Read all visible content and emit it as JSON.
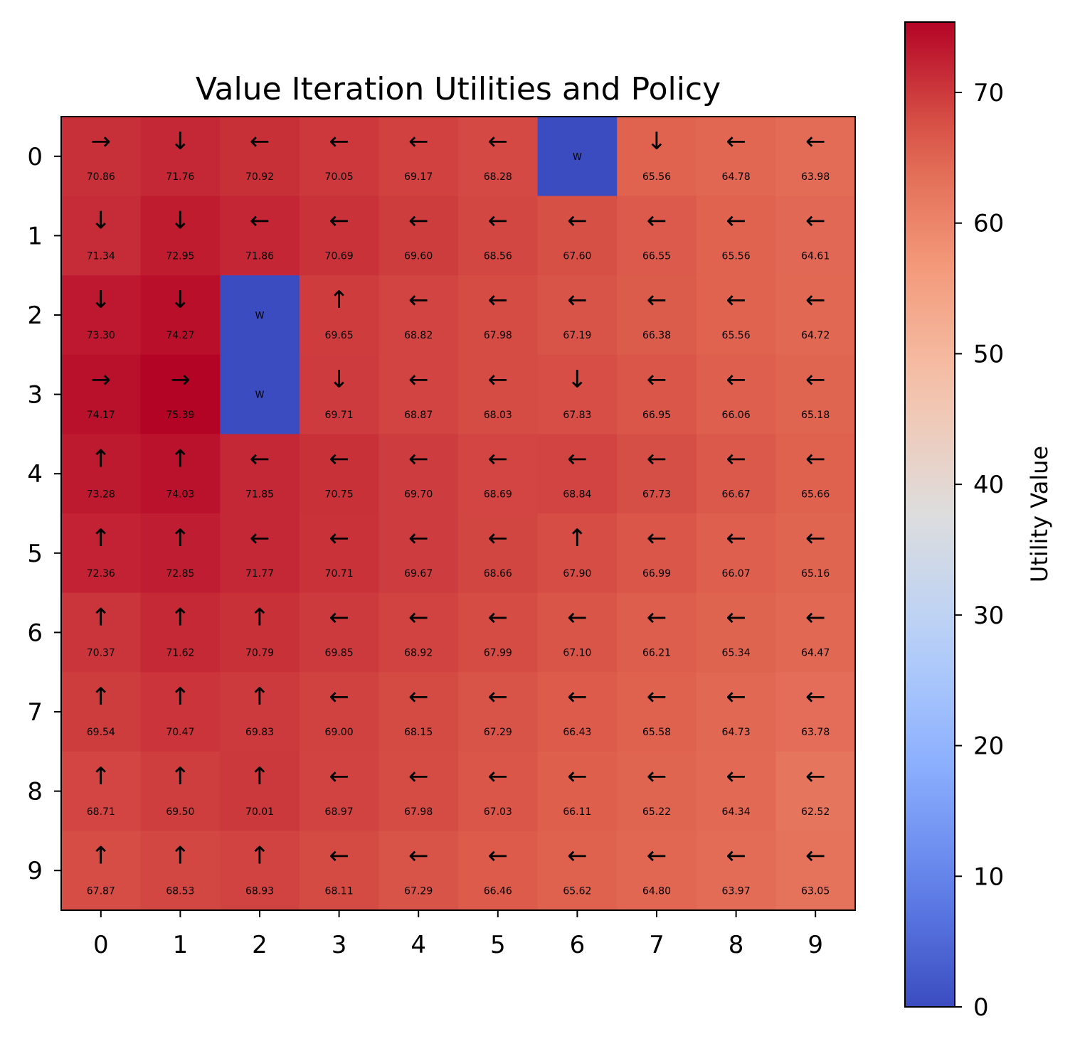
{
  "chart_data": {
    "type": "heatmap",
    "title": "Value Iteration Utilities and Policy",
    "xlabel": "",
    "ylabel": "",
    "x_ticks": [
      "0",
      "1",
      "2",
      "3",
      "4",
      "5",
      "6",
      "7",
      "8",
      "9"
    ],
    "y_ticks": [
      "0",
      "1",
      "2",
      "3",
      "4",
      "5",
      "6",
      "7",
      "8",
      "9"
    ],
    "colormap": "coolwarm",
    "vmin": 0,
    "vmax": 75.39,
    "colorbar_label": "Utility Value",
    "colorbar_ticks": [
      "0",
      "10",
      "20",
      "30",
      "40",
      "50",
      "60",
      "70"
    ],
    "wall_symbol": "W",
    "arrows": {
      "up": "↑",
      "down": "↓",
      "left": "←",
      "right": "→"
    },
    "grid": [
      [
        {
          "v": 70.86,
          "a": "right"
        },
        {
          "v": 71.76,
          "a": "down"
        },
        {
          "v": 70.92,
          "a": "left"
        },
        {
          "v": 70.05,
          "a": "left"
        },
        {
          "v": 69.17,
          "a": "left"
        },
        {
          "v": 68.28,
          "a": "left"
        },
        {
          "v": 0,
          "wall": true
        },
        {
          "v": 65.56,
          "a": "down"
        },
        {
          "v": 64.78,
          "a": "left"
        },
        {
          "v": 63.98,
          "a": "left"
        }
      ],
      [
        {
          "v": 71.34,
          "a": "down"
        },
        {
          "v": 72.95,
          "a": "down"
        },
        {
          "v": 71.86,
          "a": "left"
        },
        {
          "v": 70.69,
          "a": "left"
        },
        {
          "v": 69.6,
          "a": "left"
        },
        {
          "v": 68.56,
          "a": "left"
        },
        {
          "v": 67.6,
          "a": "left"
        },
        {
          "v": 66.55,
          "a": "left"
        },
        {
          "v": 65.56,
          "a": "left"
        },
        {
          "v": 64.61,
          "a": "left"
        }
      ],
      [
        {
          "v": 73.3,
          "a": "down"
        },
        {
          "v": 74.27,
          "a": "down"
        },
        {
          "v": 0,
          "wall": true
        },
        {
          "v": 69.65,
          "a": "up"
        },
        {
          "v": 68.82,
          "a": "left"
        },
        {
          "v": 67.98,
          "a": "left"
        },
        {
          "v": 67.19,
          "a": "left"
        },
        {
          "v": 66.38,
          "a": "left"
        },
        {
          "v": 65.56,
          "a": "left"
        },
        {
          "v": 64.72,
          "a": "left"
        }
      ],
      [
        {
          "v": 74.17,
          "a": "right"
        },
        {
          "v": 75.39,
          "a": "right"
        },
        {
          "v": 0,
          "wall": true
        },
        {
          "v": 69.71,
          "a": "down"
        },
        {
          "v": 68.87,
          "a": "left"
        },
        {
          "v": 68.03,
          "a": "left"
        },
        {
          "v": 67.83,
          "a": "down"
        },
        {
          "v": 66.95,
          "a": "left"
        },
        {
          "v": 66.06,
          "a": "left"
        },
        {
          "v": 65.18,
          "a": "left"
        }
      ],
      [
        {
          "v": 73.28,
          "a": "up"
        },
        {
          "v": 74.03,
          "a": "up"
        },
        {
          "v": 71.85,
          "a": "left"
        },
        {
          "v": 70.75,
          "a": "left"
        },
        {
          "v": 69.7,
          "a": "left"
        },
        {
          "v": 68.69,
          "a": "left"
        },
        {
          "v": 68.84,
          "a": "left"
        },
        {
          "v": 67.73,
          "a": "left"
        },
        {
          "v": 66.67,
          "a": "left"
        },
        {
          "v": 65.66,
          "a": "left"
        }
      ],
      [
        {
          "v": 72.36,
          "a": "up"
        },
        {
          "v": 72.85,
          "a": "up"
        },
        {
          "v": 71.77,
          "a": "left"
        },
        {
          "v": 70.71,
          "a": "left"
        },
        {
          "v": 69.67,
          "a": "left"
        },
        {
          "v": 68.66,
          "a": "left"
        },
        {
          "v": 67.9,
          "a": "up"
        },
        {
          "v": 66.99,
          "a": "left"
        },
        {
          "v": 66.07,
          "a": "left"
        },
        {
          "v": 65.16,
          "a": "left"
        }
      ],
      [
        {
          "v": 70.37,
          "a": "up"
        },
        {
          "v": 71.62,
          "a": "up"
        },
        {
          "v": 70.79,
          "a": "up"
        },
        {
          "v": 69.85,
          "a": "left"
        },
        {
          "v": 68.92,
          "a": "left"
        },
        {
          "v": 67.99,
          "a": "left"
        },
        {
          "v": 67.1,
          "a": "left"
        },
        {
          "v": 66.21,
          "a": "left"
        },
        {
          "v": 65.34,
          "a": "left"
        },
        {
          "v": 64.47,
          "a": "left"
        }
      ],
      [
        {
          "v": 69.54,
          "a": "up"
        },
        {
          "v": 70.47,
          "a": "up"
        },
        {
          "v": 69.83,
          "a": "up"
        },
        {
          "v": 69.0,
          "a": "left"
        },
        {
          "v": 68.15,
          "a": "left"
        },
        {
          "v": 67.29,
          "a": "left"
        },
        {
          "v": 66.43,
          "a": "left"
        },
        {
          "v": 65.58,
          "a": "left"
        },
        {
          "v": 64.73,
          "a": "left"
        },
        {
          "v": 63.78,
          "a": "left"
        }
      ],
      [
        {
          "v": 68.71,
          "a": "up"
        },
        {
          "v": 69.5,
          "a": "up"
        },
        {
          "v": 70.01,
          "a": "up"
        },
        {
          "v": 68.97,
          "a": "left"
        },
        {
          "v": 67.98,
          "a": "left"
        },
        {
          "v": 67.03,
          "a": "left"
        },
        {
          "v": 66.11,
          "a": "left"
        },
        {
          "v": 65.22,
          "a": "left"
        },
        {
          "v": 64.34,
          "a": "left"
        },
        {
          "v": 62.52,
          "a": "left"
        }
      ],
      [
        {
          "v": 67.87,
          "a": "up"
        },
        {
          "v": 68.53,
          "a": "up"
        },
        {
          "v": 68.93,
          "a": "up"
        },
        {
          "v": 68.11,
          "a": "left"
        },
        {
          "v": 67.29,
          "a": "left"
        },
        {
          "v": 66.46,
          "a": "left"
        },
        {
          "v": 65.62,
          "a": "left"
        },
        {
          "v": 64.8,
          "a": "left"
        },
        {
          "v": 63.97,
          "a": "left"
        },
        {
          "v": 63.05,
          "a": "left"
        }
      ]
    ]
  }
}
